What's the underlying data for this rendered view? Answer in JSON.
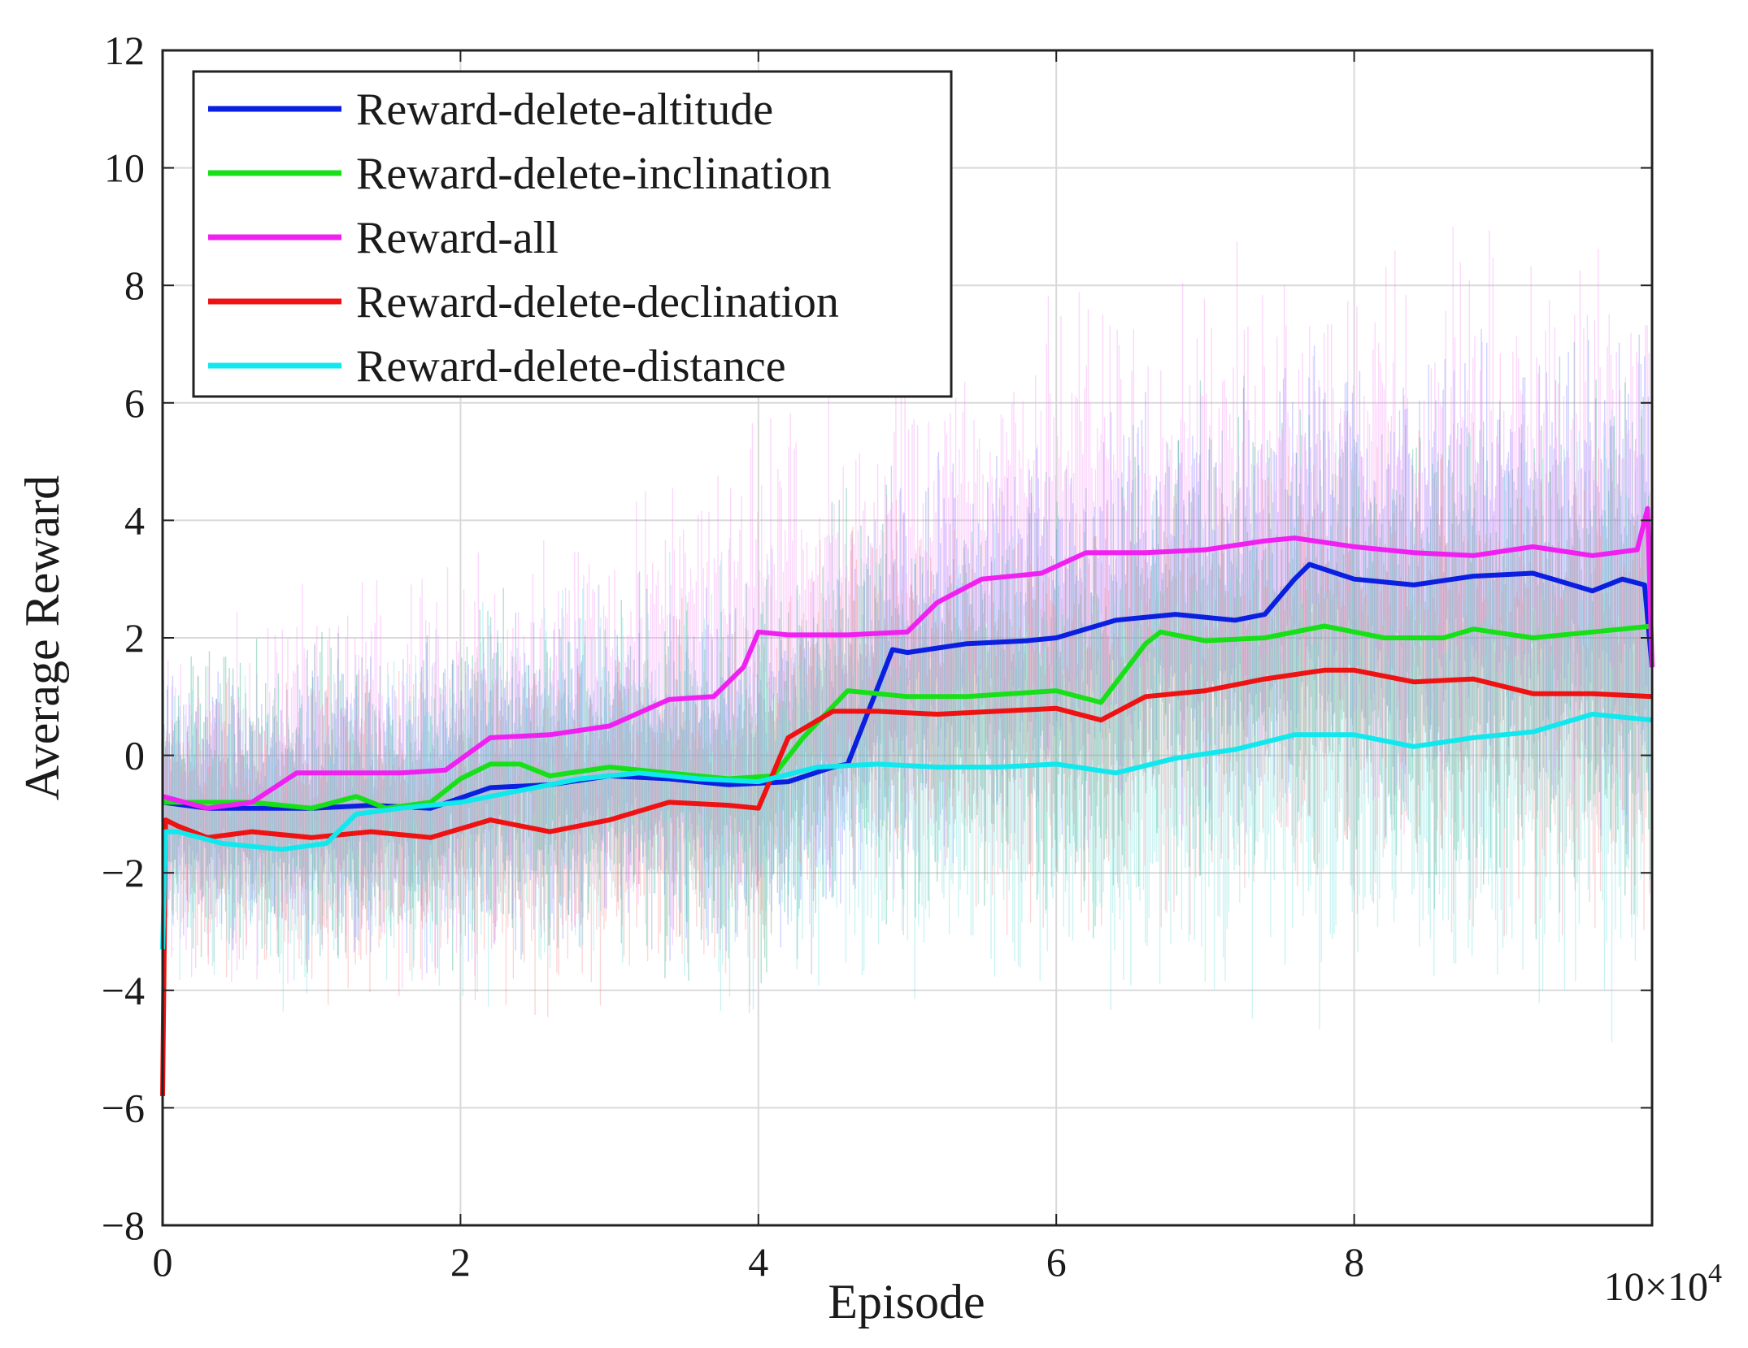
{
  "chart_data": {
    "type": "line",
    "title": "",
    "xlabel": "Episode",
    "ylabel": "Average  Reward",
    "xlim": [
      0,
      10
    ],
    "ylim": [
      -8,
      12
    ],
    "x_scale_label": "10×10",
    "x_scale_exponent": "4",
    "x_ticks": [
      0,
      2,
      4,
      6,
      8
    ],
    "x_tick_labels": [
      "0",
      "2",
      "4",
      "6",
      "8"
    ],
    "y_ticks": [
      -8,
      -6,
      -4,
      -2,
      0,
      2,
      4,
      6,
      8,
      10,
      12
    ],
    "y_tick_labels": [
      "−8",
      "−6",
      "−4",
      "−2",
      "0",
      "2",
      "4",
      "6",
      "8",
      "10",
      "12"
    ],
    "grid": true,
    "legend_position": "top-left",
    "x_units_note": "x in units of 10^4 episodes",
    "series": [
      {
        "name": "Reward-delete-altitude",
        "color": "#0a1fe0",
        "noise_color": "#6f7cff",
        "noise_amp": 2.2,
        "x": [
          0,
          0.3,
          0.6,
          1.0,
          1.4,
          1.8,
          2.2,
          2.6,
          3.0,
          3.4,
          3.8,
          4.2,
          4.5,
          4.6,
          4.9,
          5.0,
          5.4,
          5.8,
          6.0,
          6.4,
          6.8,
          7.2,
          7.4,
          7.6,
          7.7,
          8.0,
          8.4,
          8.8,
          9.2,
          9.6,
          9.8,
          9.95,
          10.0
        ],
        "values": [
          -0.8,
          -0.9,
          -0.9,
          -0.9,
          -0.85,
          -0.9,
          -0.55,
          -0.5,
          -0.35,
          -0.4,
          -0.5,
          -0.45,
          -0.2,
          -0.15,
          1.8,
          1.75,
          1.9,
          1.95,
          2.0,
          2.3,
          2.4,
          2.3,
          2.4,
          3.0,
          3.25,
          3.0,
          2.9,
          3.05,
          3.1,
          2.8,
          3.0,
          2.9,
          1.5
        ]
      },
      {
        "name": "Reward-delete-inclination",
        "color": "#18e018",
        "noise_color": "#1fa87a",
        "noise_amp": 2.4,
        "x": [
          0,
          0.3,
          0.6,
          1.0,
          1.3,
          1.5,
          1.8,
          2.0,
          2.2,
          2.4,
          2.6,
          3.0,
          3.4,
          3.8,
          4.1,
          4.3,
          4.6,
          5.0,
          5.4,
          6.0,
          6.3,
          6.6,
          6.7,
          7.0,
          7.4,
          7.8,
          8.2,
          8.6,
          8.8,
          9.2,
          9.6,
          10.0
        ],
        "values": [
          -0.8,
          -0.8,
          -0.8,
          -0.9,
          -0.7,
          -0.9,
          -0.8,
          -0.4,
          -0.15,
          -0.15,
          -0.35,
          -0.2,
          -0.3,
          -0.4,
          -0.35,
          0.3,
          1.1,
          1.0,
          1.0,
          1.1,
          0.9,
          1.9,
          2.1,
          1.95,
          2.0,
          2.2,
          2.0,
          2.0,
          2.15,
          2.0,
          2.1,
          2.2
        ]
      },
      {
        "name": "Reward-all",
        "color": "#f020f0",
        "noise_color": "#f58cf5",
        "noise_amp": 2.8,
        "x": [
          0,
          0.3,
          0.6,
          0.9,
          1.2,
          1.6,
          1.9,
          2.2,
          2.6,
          3.0,
          3.4,
          3.7,
          3.9,
          4.0,
          4.2,
          4.6,
          5.0,
          5.2,
          5.5,
          5.9,
          6.2,
          6.6,
          7.0,
          7.4,
          7.6,
          8.0,
          8.4,
          8.8,
          9.2,
          9.6,
          9.9,
          9.97,
          10.0
        ],
        "values": [
          -0.7,
          -0.9,
          -0.8,
          -0.3,
          -0.3,
          -0.3,
          -0.25,
          0.3,
          0.35,
          0.5,
          0.95,
          1.0,
          1.5,
          2.1,
          2.05,
          2.05,
          2.1,
          2.6,
          3.0,
          3.1,
          3.45,
          3.45,
          3.5,
          3.65,
          3.7,
          3.55,
          3.45,
          3.4,
          3.55,
          3.4,
          3.5,
          4.2,
          1.5
        ]
      },
      {
        "name": "Reward-delete-declination",
        "color": "#ee1212",
        "noise_color": "#f78a8a",
        "noise_amp": 2.3,
        "x": [
          0,
          0.02,
          0.1,
          0.3,
          0.6,
          1.0,
          1.4,
          1.8,
          2.2,
          2.6,
          3.0,
          3.4,
          3.8,
          4.0,
          4.2,
          4.5,
          4.8,
          5.2,
          5.6,
          6.0,
          6.3,
          6.6,
          7.0,
          7.4,
          7.8,
          8.0,
          8.4,
          8.8,
          9.2,
          9.6,
          10.0
        ],
        "values": [
          -5.8,
          -1.1,
          -1.2,
          -1.4,
          -1.3,
          -1.4,
          -1.3,
          -1.4,
          -1.1,
          -1.3,
          -1.1,
          -0.8,
          -0.85,
          -0.9,
          0.3,
          0.75,
          0.75,
          0.7,
          0.75,
          0.8,
          0.6,
          1.0,
          1.1,
          1.3,
          1.45,
          1.45,
          1.25,
          1.3,
          1.05,
          1.05,
          1.0
        ]
      },
      {
        "name": "Reward-delete-distance",
        "color": "#10e8ee",
        "noise_color": "#6cdcdc",
        "noise_amp": 2.6,
        "x": [
          0,
          0.02,
          0.1,
          0.4,
          0.8,
          1.1,
          1.3,
          1.6,
          2.0,
          2.4,
          2.8,
          3.2,
          3.6,
          4.0,
          4.4,
          4.8,
          5.2,
          5.6,
          6.0,
          6.4,
          6.8,
          7.2,
          7.6,
          8.0,
          8.4,
          8.8,
          9.2,
          9.6,
          10.0
        ],
        "values": [
          -3.3,
          -1.3,
          -1.3,
          -1.5,
          -1.6,
          -1.5,
          -1.0,
          -0.9,
          -0.8,
          -0.6,
          -0.4,
          -0.3,
          -0.4,
          -0.45,
          -0.2,
          -0.15,
          -0.2,
          -0.2,
          -0.15,
          -0.3,
          -0.05,
          0.1,
          0.35,
          0.35,
          0.15,
          0.3,
          0.4,
          0.7,
          0.6
        ]
      }
    ]
  }
}
